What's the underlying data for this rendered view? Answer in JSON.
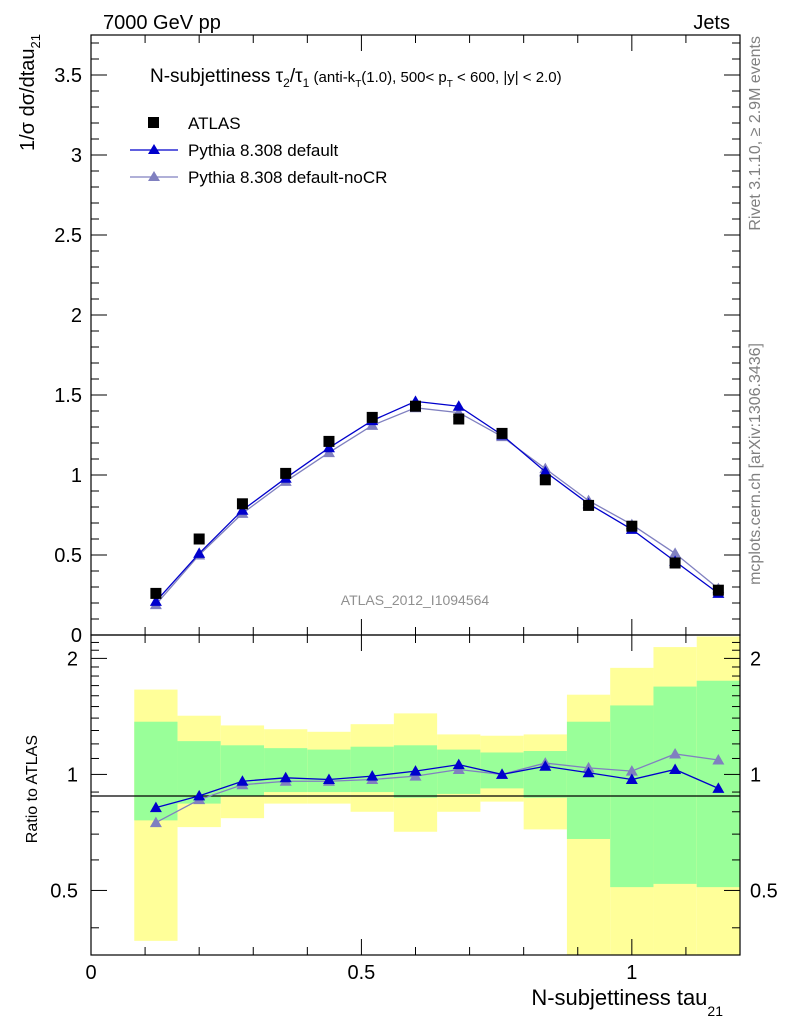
{
  "header": {
    "left": "7000 GeV pp",
    "right": "Jets"
  },
  "side_text": {
    "rivet": "Rivet 3.1.10, ≥ 2.9M events",
    "mcplots": "mcplots.cern.ch [arXiv:1306.3436]"
  },
  "watermark": "ATLAS_2012_I1094564",
  "colors": {
    "data": "#000000",
    "default": "#0000cc",
    "noCR": "#8080c0",
    "band_inner": "#99ff99",
    "band_outer": "#ffff99"
  },
  "chart_data": [
    {
      "type": "scatter",
      "title_parts": {
        "main": "N-subjettiness τ",
        "sub2": "2",
        "slash": "/τ",
        "sub1": "1",
        "small_a": " (anti-k",
        "small_T": "T",
        "small_b": "(1.0), 500< p",
        "small_T2": "T",
        "small_c": " < 600, |y| < 2.0)"
      },
      "ylabel": {
        "main": "1/σ dσ/dtau",
        "sub": "21"
      },
      "xlim": [
        0,
        1.2
      ],
      "ylim": [
        0,
        3.75
      ],
      "yticks": [
        0,
        0.5,
        1,
        1.5,
        2,
        2.5,
        3,
        3.5
      ],
      "ytick_labels": [
        "0",
        "0.5",
        "1",
        "1.5",
        "2",
        "2.5",
        "3",
        "3.5"
      ],
      "legend_position": "top-left",
      "series": [
        {
          "name": "ATLAS",
          "marker": "square",
          "x": [
            0.12,
            0.2,
            0.28,
            0.36,
            0.44,
            0.52,
            0.6,
            0.68,
            0.76,
            0.84,
            0.92,
            1.0,
            1.08,
            1.16
          ],
          "y": [
            0.26,
            0.6,
            0.82,
            1.01,
            1.21,
            1.36,
            1.43,
            1.35,
            1.26,
            0.97,
            0.81,
            0.68,
            0.45,
            0.28
          ]
        },
        {
          "name": "Pythia 8.308 default",
          "marker": "triangle",
          "x": [
            0.12,
            0.2,
            0.28,
            0.36,
            0.44,
            0.52,
            0.6,
            0.68,
            0.76,
            0.84,
            0.92,
            1.0,
            1.08,
            1.16
          ],
          "y": [
            0.21,
            0.51,
            0.78,
            0.98,
            1.17,
            1.34,
            1.46,
            1.43,
            1.25,
            1.02,
            0.82,
            0.66,
            0.46,
            0.26
          ]
        },
        {
          "name": "Pythia 8.308 default-noCR",
          "marker": "triangle",
          "x": [
            0.12,
            0.2,
            0.28,
            0.36,
            0.44,
            0.52,
            0.6,
            0.68,
            0.76,
            0.84,
            0.92,
            1.0,
            1.08,
            1.16
          ],
          "y": [
            0.19,
            0.5,
            0.76,
            0.96,
            1.14,
            1.31,
            1.42,
            1.39,
            1.24,
            1.04,
            0.84,
            0.69,
            0.51,
            0.29
          ]
        }
      ]
    },
    {
      "type": "line",
      "ylabel": "Ratio to ATLAS",
      "xlabel": {
        "main": "N-subjettiness tau",
        "sub": "21"
      },
      "xlim": [
        0,
        1.2
      ],
      "ylim": [
        0.34,
        2.3
      ],
      "ylog": true,
      "xticks": [
        0,
        0.5,
        1
      ],
      "xtick_labels": [
        "0",
        "0.5",
        "1"
      ],
      "yticks": [
        0.5,
        1,
        2
      ],
      "ytick_labels": [
        "0.5",
        "1",
        "2"
      ],
      "bands": {
        "edges": [
          0.08,
          0.16,
          0.24,
          0.32,
          0.4,
          0.48,
          0.56,
          0.64,
          0.72,
          0.8,
          0.88,
          0.96,
          1.04,
          1.12,
          1.2
        ],
        "inner_low": [
          0.76,
          0.84,
          0.88,
          0.9,
          0.9,
          0.9,
          0.87,
          0.89,
          0.92,
          0.87,
          0.68,
          0.51,
          0.52,
          0.51
        ],
        "inner_high": [
          1.37,
          1.22,
          1.19,
          1.17,
          1.16,
          1.18,
          1.19,
          1.16,
          1.14,
          1.15,
          1.37,
          1.51,
          1.69,
          1.75
        ],
        "outer_low": [
          0.37,
          0.73,
          0.77,
          0.84,
          0.84,
          0.8,
          0.71,
          0.8,
          0.85,
          0.72,
          0.34,
          0.34,
          0.34,
          0.34
        ],
        "outer_high": [
          1.66,
          1.42,
          1.34,
          1.31,
          1.29,
          1.35,
          1.44,
          1.27,
          1.26,
          1.27,
          1.61,
          1.89,
          2.14,
          2.28
        ]
      },
      "reference_line": 1,
      "series": [
        {
          "name": "Pythia 8.308 default",
          "x": [
            0.12,
            0.2,
            0.28,
            0.36,
            0.44,
            0.52,
            0.6,
            0.68,
            0.76,
            0.84,
            0.92,
            1.0,
            1.08,
            1.16
          ],
          "y": [
            0.82,
            0.88,
            0.96,
            0.98,
            0.97,
            0.99,
            1.02,
            1.06,
            1.0,
            1.05,
            1.01,
            0.97,
            1.03,
            0.92
          ]
        },
        {
          "name": "Pythia 8.308 default-noCR",
          "x": [
            0.12,
            0.2,
            0.28,
            0.36,
            0.44,
            0.52,
            0.6,
            0.68,
            0.76,
            0.84,
            0.92,
            1.0,
            1.08,
            1.16
          ],
          "y": [
            0.75,
            0.86,
            0.94,
            0.96,
            0.96,
            0.97,
            0.99,
            1.03,
            1.0,
            1.07,
            1.04,
            1.02,
            1.13,
            1.09
          ]
        }
      ]
    }
  ]
}
